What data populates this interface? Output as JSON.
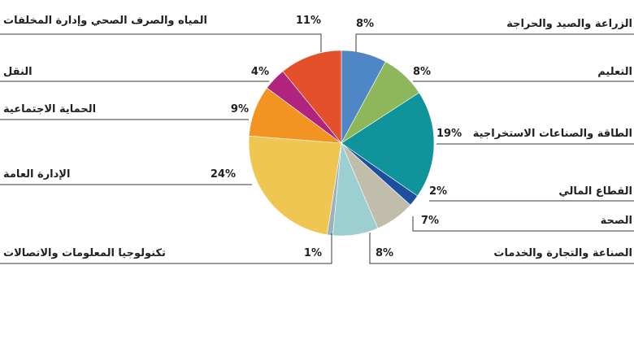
{
  "chart_data": {
    "type": "pie",
    "title": "",
    "slices": [
      {
        "label": "الزراعة والصيد والحراجة",
        "pct_label": "8%",
        "value": 8,
        "color": "#4f86c6"
      },
      {
        "label": "التعليم",
        "pct_label": "8%",
        "value": 8,
        "color": "#8db75a"
      },
      {
        "label": "الطاقة والصناعات الاستخراجية",
        "pct_label": "19%",
        "value": 19,
        "color": "#0e949a"
      },
      {
        "label": "القطاع المالي",
        "pct_label": "2%",
        "value": 2,
        "color": "#1d4f9e"
      },
      {
        "label": "الصحة",
        "pct_label": "7%",
        "value": 7,
        "color": "#c1bdab"
      },
      {
        "label": "الصناعة والتجارة والخدمات",
        "pct_label": "8%",
        "value": 8,
        "color": "#9ccfd2"
      },
      {
        "label": "تكنولوجيا المعلومات والاتصالات",
        "pct_label": "1%",
        "value": 1,
        "color": "#9bb2bd"
      },
      {
        "label": "الإدارة العامة",
        "pct_label": "24%",
        "value": 24,
        "color": "#efc652"
      },
      {
        "label": "الحماية الاجتماعية",
        "pct_label": "9%",
        "value": 9,
        "color": "#f39422"
      },
      {
        "label": "النقل",
        "pct_label": "4%",
        "value": 4,
        "color": "#b0237e"
      },
      {
        "label": "المياه والصرف الصحي وإدارة المخلفات",
        "pct_label": "11%",
        "value": 11,
        "color": "#e4502a"
      }
    ]
  }
}
